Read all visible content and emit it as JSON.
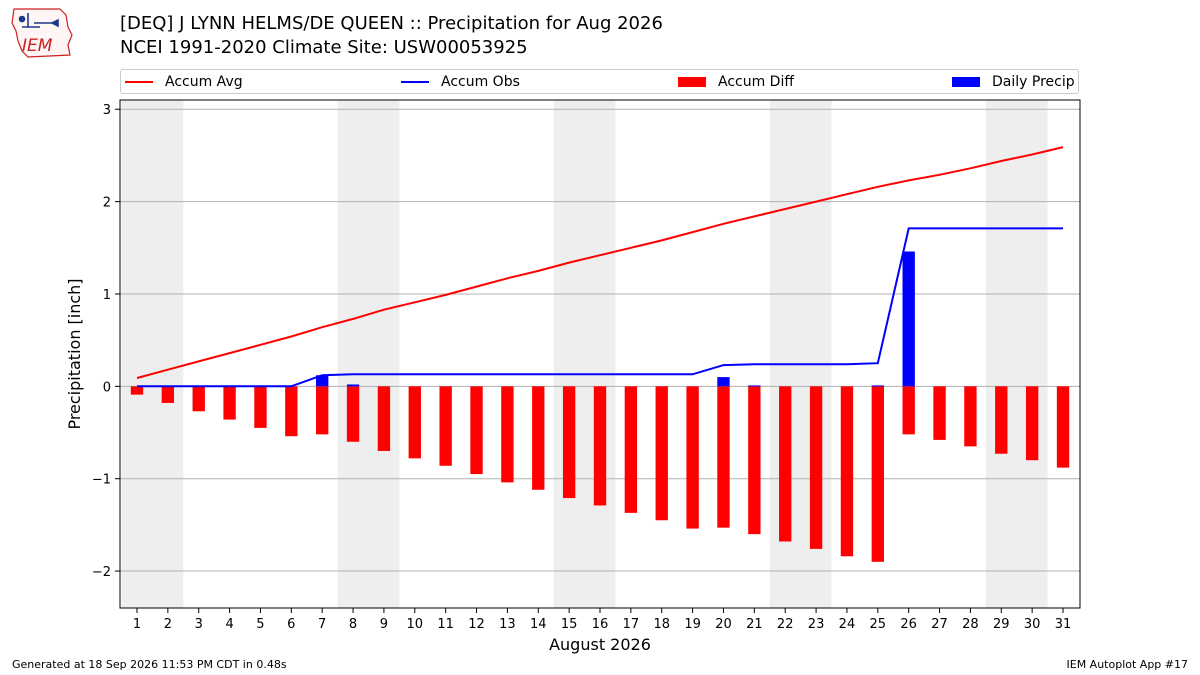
{
  "header": {
    "title_line1": "[DEQ] J LYNN HELMS/DE QUEEN :: Precipitation for Aug 2026",
    "title_line2": "NCEI 1991-2020 Climate Site: USW00053925",
    "logo_text": "IEM"
  },
  "footer": {
    "generated": "Generated at 18 Sep 2026 11:53 PM CDT in 0.48s",
    "app": "IEM Autoplot App #17"
  },
  "colors": {
    "accum_avg": "#ff0000",
    "accum_obs": "#0000ff",
    "accum_diff": "#ff0000",
    "daily_precip": "#0000ff",
    "weekend_shade": "#eeeeee",
    "grid": "#b0b0b0"
  },
  "chart_data": {
    "type": "bar",
    "title": "[DEQ] J LYNN HELMS/DE QUEEN :: Precipitation for Aug 2026",
    "subtitle": "NCEI 1991-2020 Climate Site: USW00053925",
    "xlabel": "August 2026",
    "ylabel": "Precipitation [inch]",
    "ylim": [
      -2.4,
      3.1
    ],
    "yticks": [
      -2,
      -1,
      0,
      1,
      2,
      3
    ],
    "ytick_labels": [
      "−2",
      "−1",
      "0",
      "1",
      "2",
      "3"
    ],
    "grid": true,
    "legend_position": "top",
    "categories": [
      "1",
      "2",
      "3",
      "4",
      "5",
      "6",
      "7",
      "8",
      "9",
      "10",
      "11",
      "12",
      "13",
      "14",
      "15",
      "16",
      "17",
      "18",
      "19",
      "20",
      "21",
      "22",
      "23",
      "24",
      "25",
      "26",
      "27",
      "28",
      "29",
      "30",
      "31"
    ],
    "weekend_shading": [
      [
        1,
        2
      ],
      [
        8,
        9
      ],
      [
        15,
        16
      ],
      [
        22,
        23
      ],
      [
        29,
        30
      ]
    ],
    "series": [
      {
        "name": "Accum Avg",
        "kind": "line",
        "values": [
          0.09,
          0.18,
          0.27,
          0.36,
          0.45,
          0.54,
          0.64,
          0.73,
          0.83,
          0.91,
          0.99,
          1.08,
          1.17,
          1.25,
          1.34,
          1.42,
          1.5,
          1.58,
          1.67,
          1.76,
          1.84,
          1.92,
          2.0,
          2.08,
          2.16,
          2.23,
          2.29,
          2.36,
          2.44,
          2.51,
          2.59
        ]
      },
      {
        "name": "Accum Obs",
        "kind": "line",
        "values": [
          0.0,
          0.0,
          0.0,
          0.0,
          0.0,
          0.0,
          0.12,
          0.13,
          0.13,
          0.13,
          0.13,
          0.13,
          0.13,
          0.13,
          0.13,
          0.13,
          0.13,
          0.13,
          0.13,
          0.23,
          0.24,
          0.24,
          0.24,
          0.24,
          0.25,
          1.71,
          1.71,
          1.71,
          1.71,
          1.71,
          1.71
        ]
      },
      {
        "name": "Accum Diff",
        "kind": "bar",
        "values": [
          -0.09,
          -0.18,
          -0.27,
          -0.36,
          -0.45,
          -0.54,
          -0.52,
          -0.6,
          -0.7,
          -0.78,
          -0.86,
          -0.95,
          -1.04,
          -1.12,
          -1.21,
          -1.29,
          -1.37,
          -1.45,
          -1.54,
          -1.53,
          -1.6,
          -1.68,
          -1.76,
          -1.84,
          -1.9,
          -0.52,
          -0.58,
          -0.65,
          -0.73,
          -0.8,
          -0.88
        ]
      },
      {
        "name": "Daily Precip",
        "kind": "bar",
        "values": [
          0,
          0,
          0,
          0,
          0,
          0,
          0.12,
          0.02,
          0,
          0,
          0,
          0,
          0,
          0,
          0,
          0,
          0,
          0,
          0,
          0.1,
          0.01,
          0,
          0,
          0,
          0.01,
          1.46,
          0,
          0,
          0,
          0,
          0
        ]
      }
    ]
  }
}
